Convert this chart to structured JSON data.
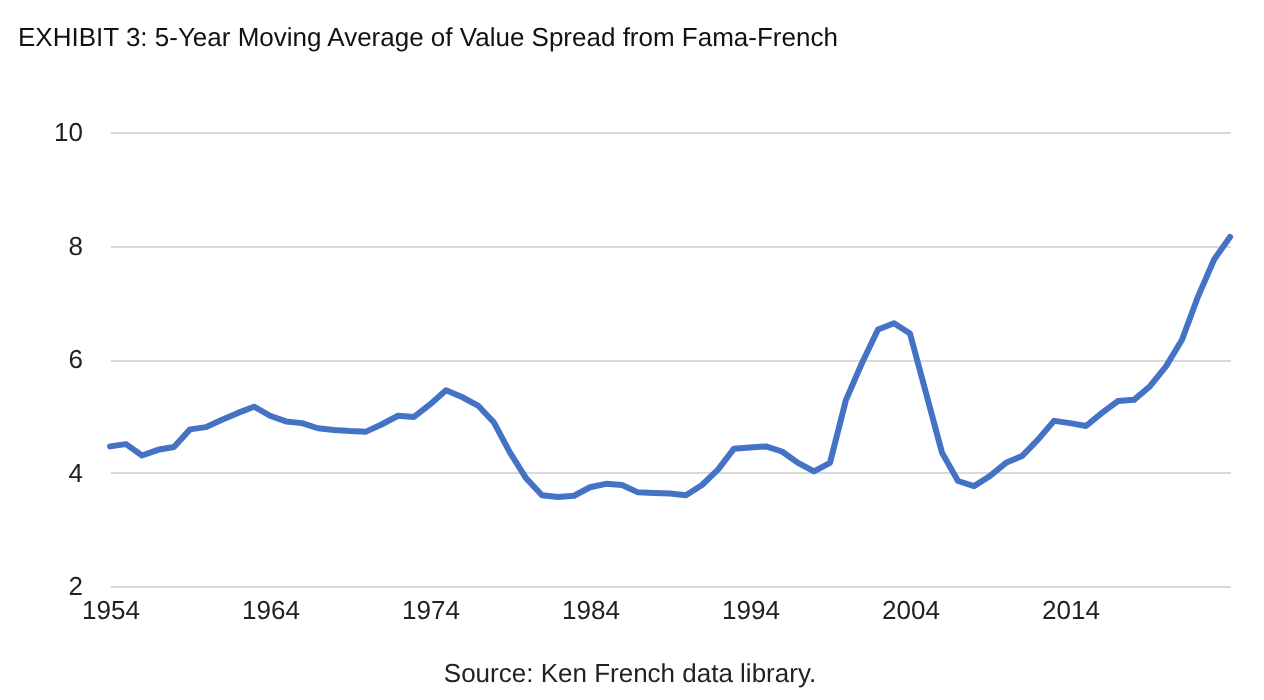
{
  "chart_data": {
    "type": "line",
    "title": "EXHIBIT 3: 5-Year Moving Average of Value Spread from Fama-French",
    "annotations": [
      "Source: Ken French data library."
    ],
    "x": [
      1954,
      1955,
      1956,
      1957,
      1958,
      1959,
      1960,
      1961,
      1962,
      1963,
      1964,
      1965,
      1966,
      1967,
      1968,
      1969,
      1970,
      1971,
      1972,
      1973,
      1974,
      1975,
      1976,
      1977,
      1978,
      1979,
      1980,
      1981,
      1982,
      1983,
      1984,
      1985,
      1986,
      1987,
      1988,
      1989,
      1990,
      1991,
      1992,
      1993,
      1994,
      1995,
      1996,
      1997,
      1998,
      1999,
      2000,
      2001,
      2002,
      2003,
      2004,
      2005,
      2006,
      2007,
      2008,
      2009,
      2010,
      2011,
      2012,
      2013,
      2014,
      2015,
      2016,
      2017,
      2018,
      2019,
      2020,
      2021,
      2022,
      2023,
      2024
    ],
    "series": [
      {
        "color": "#4472c4",
        "values": [
          4.46,
          4.5,
          4.3,
          4.4,
          4.45,
          4.76,
          4.8,
          4.93,
          5.05,
          5.16,
          5.0,
          4.9,
          4.87,
          4.78,
          4.75,
          4.73,
          4.72,
          4.85,
          5.0,
          4.98,
          5.2,
          5.45,
          5.33,
          5.18,
          4.88,
          4.35,
          3.9,
          3.6,
          3.57,
          3.59,
          3.74,
          3.8,
          3.78,
          3.65,
          3.64,
          3.63,
          3.6,
          3.78,
          4.05,
          4.42,
          4.44,
          4.46,
          4.37,
          4.17,
          4.02,
          4.17,
          5.28,
          5.93,
          6.52,
          6.63,
          6.45,
          5.4,
          4.35,
          3.85,
          3.76,
          3.94,
          4.17,
          4.29,
          4.58,
          4.91,
          4.87,
          4.82,
          5.05,
          5.26,
          5.28,
          5.52,
          5.87,
          6.34,
          7.1,
          7.75,
          8.15
        ]
      }
    ],
    "xlim": [
      1954,
      2024
    ],
    "xticks": [
      1954,
      1964,
      1974,
      1984,
      1994,
      2004,
      2014
    ],
    "ylim": [
      2,
      10
    ],
    "yticks": [
      2,
      4,
      6,
      8,
      10
    ],
    "grid": "y",
    "marker": "none",
    "line_style": "solid"
  }
}
